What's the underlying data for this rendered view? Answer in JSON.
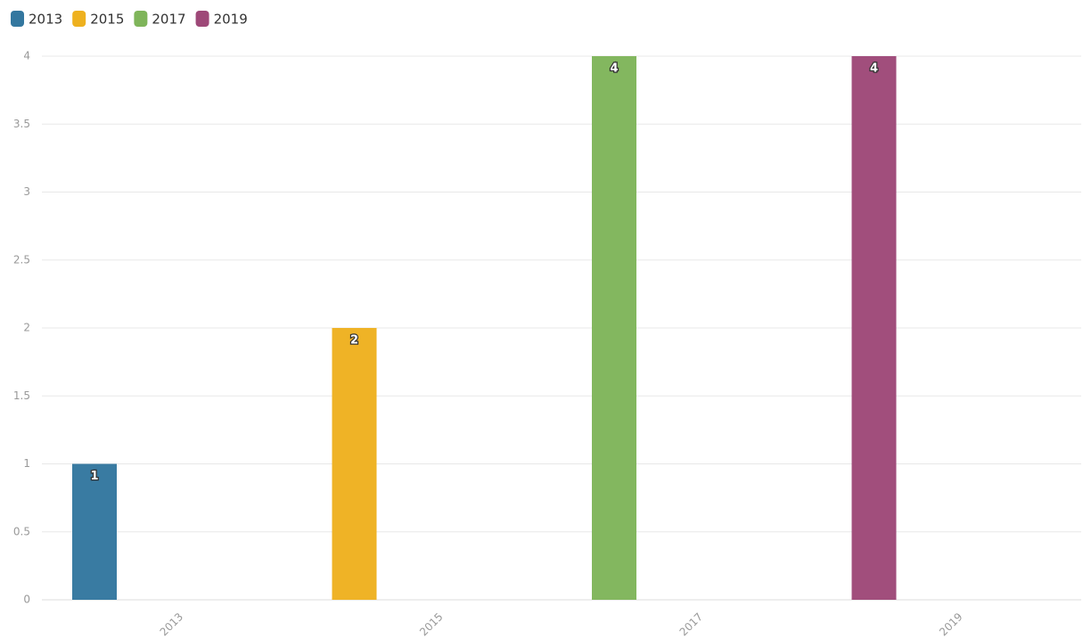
{
  "chart_data": {
    "type": "bar",
    "categories": [
      "2013",
      "2015",
      "2017",
      "2019"
    ],
    "series": [
      {
        "name": "2013",
        "color": "#33779f",
        "values": [
          1,
          null,
          null,
          null
        ]
      },
      {
        "name": "2015",
        "color": "#eeb11f",
        "values": [
          null,
          2,
          null,
          null
        ]
      },
      {
        "name": "2017",
        "color": "#7fb55a",
        "values": [
          null,
          null,
          4,
          null
        ]
      },
      {
        "name": "2019",
        "color": "#9e4878",
        "values": [
          null,
          null,
          null,
          4
        ]
      }
    ],
    "ylim": [
      0,
      4
    ],
    "yticks": [
      0,
      0.5,
      1,
      1.5,
      2,
      2.5,
      3,
      3.5,
      4
    ],
    "grid": true,
    "legend": "top-left"
  }
}
